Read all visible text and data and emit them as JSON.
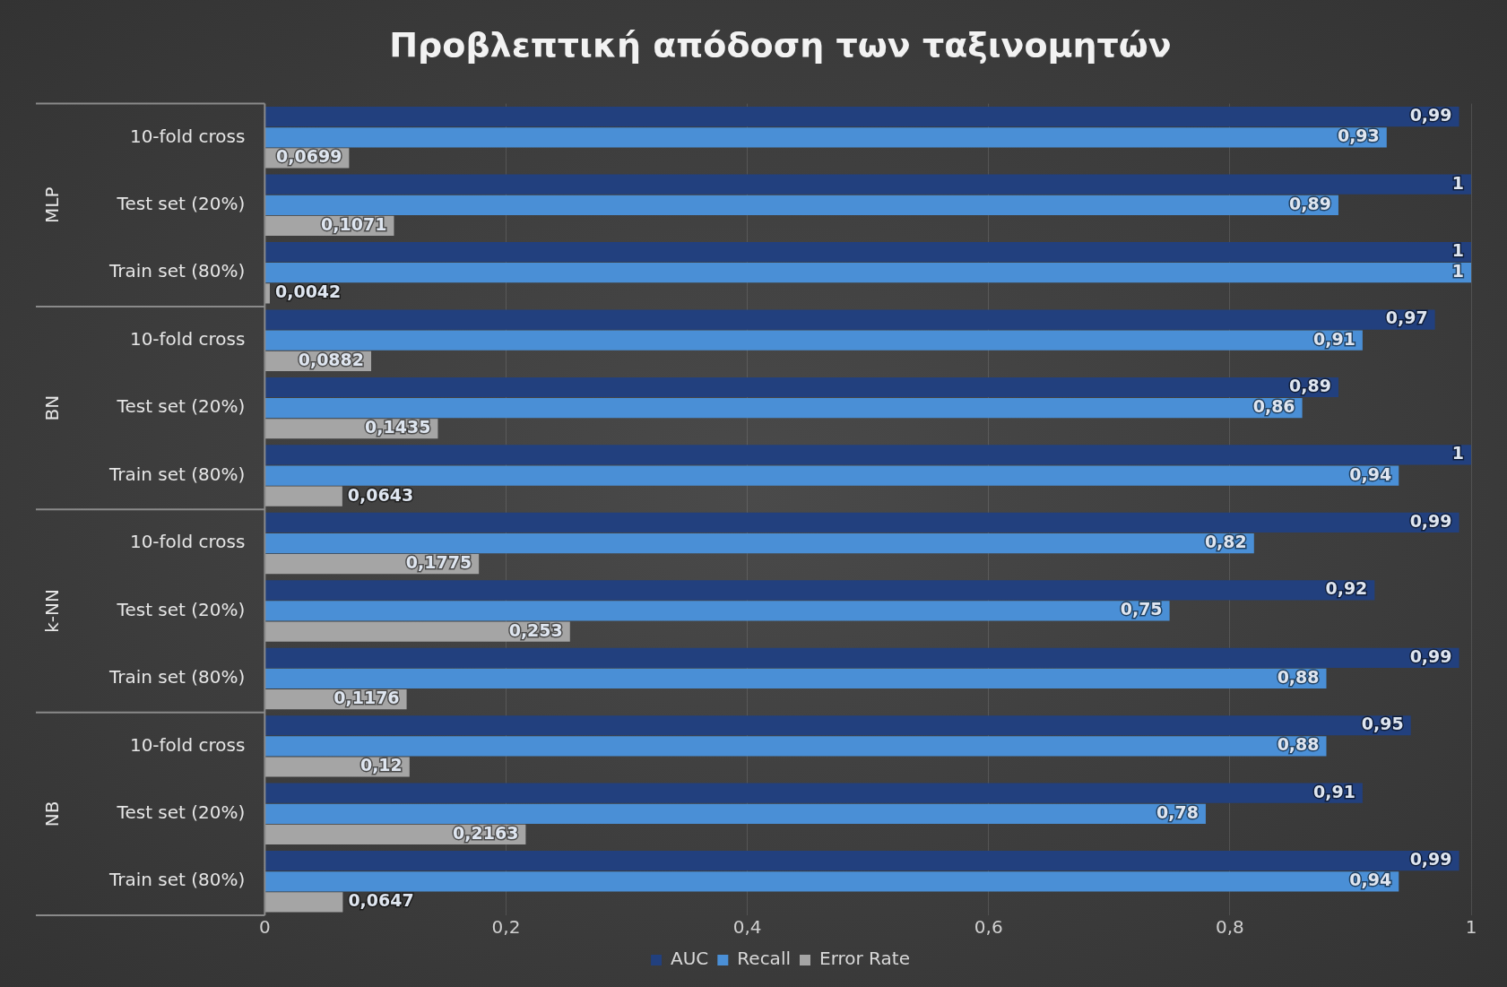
{
  "chart_data": {
    "type": "bar",
    "orientation": "horizontal",
    "title": "Προβλεπτική απόδοση των ταξινομητών",
    "categories": [
      "10-fold cross",
      "Test set (20%)",
      "Train set (80%)",
      "10-fold cross",
      "Test set (20%)",
      "Train set (80%)",
      "10-fold cross",
      "Test set (20%)",
      "Train set (80%)",
      "10-fold cross",
      "Test set (20%)",
      "Train set (80%)"
    ],
    "annotations": [
      "MLP",
      "BN",
      "k-NN",
      "NB"
    ],
    "series": [
      {
        "name": "AUC",
        "color": "#22407e",
        "values": [
          0.99,
          1,
          1,
          0.97,
          0.89,
          1,
          0.99,
          0.92,
          0.99,
          0.95,
          0.91,
          0.99
        ],
        "value_labels": [
          "0,99",
          "1",
          "1",
          "0,97",
          "0,89",
          "1",
          "0,99",
          "0,92",
          "0,99",
          "0,95",
          "0,91",
          "0,99"
        ]
      },
      {
        "name": "Recall",
        "color": "#4a8fd6",
        "values": [
          0.93,
          0.89,
          1,
          0.91,
          0.86,
          0.94,
          0.82,
          0.75,
          0.88,
          0.88,
          0.78,
          0.94
        ],
        "value_labels": [
          "0,93",
          "0,89",
          "1",
          "0,91",
          "0,86",
          "0,94",
          "0,82",
          "0,75",
          "0,88",
          "0,88",
          "0,78",
          "0,94"
        ]
      },
      {
        "name": "Error Rate",
        "color": "#a5a5a5",
        "values": [
          0.0699,
          0.1071,
          0.0042,
          0.0882,
          0.1435,
          0.0643,
          0.1775,
          0.253,
          0.1176,
          0.12,
          0.2163,
          0.0647
        ],
        "value_labels": [
          "0,0699",
          "0,1071",
          "0,0042",
          "0,0882",
          "0,1435",
          "0,0643",
          "0,1775",
          "0,253",
          "0,1176",
          "0,12",
          "0,2163",
          "0,0647"
        ]
      }
    ],
    "xlim": [
      0,
      1
    ],
    "xticks": [
      0,
      {
        "value": 0.2,
        "label": "0,2"
      },
      {
        "value": 0.4,
        "label": "0,4"
      },
      {
        "value": 0.6,
        "label": "0,6"
      },
      {
        "value": 0.8,
        "label": "0,8"
      },
      1
    ],
    "grid": "x",
    "legend": "bottom"
  }
}
